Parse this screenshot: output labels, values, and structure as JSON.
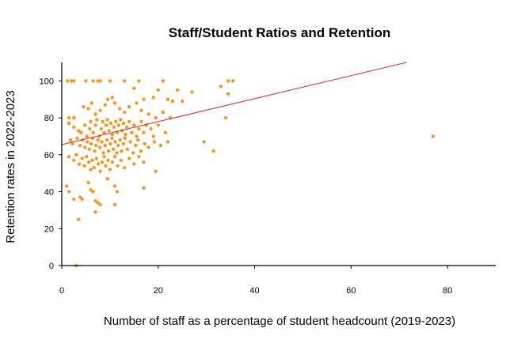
{
  "chart_data": {
    "type": "scatter",
    "title": "Staff/Student Ratios and Retention",
    "xlabel": "Number of staff as a percentage of student headcount (2019-2023)",
    "ylabel": "Retention rates in 2022-2023",
    "xlim": [
      0,
      90
    ],
    "ylim": [
      0,
      110
    ],
    "x_ticks": [
      0,
      20,
      40,
      60,
      80
    ],
    "y_ticks": [
      0,
      20,
      40,
      60,
      80,
      100
    ],
    "grid": false,
    "colors": {
      "points": "#f5961e",
      "trend": "#e8201c",
      "axis": "#000000"
    },
    "trend_line": {
      "x": [
        0,
        71.5
      ],
      "y": [
        65.5,
        110
      ]
    },
    "points": [
      [
        1.2,
        100
      ],
      [
        2.0,
        100
      ],
      [
        2.5,
        100
      ],
      [
        5.0,
        100
      ],
      [
        6.5,
        100
      ],
      [
        7.5,
        100
      ],
      [
        8.0,
        100
      ],
      [
        10.0,
        100
      ],
      [
        13.0,
        100
      ],
      [
        16.0,
        100
      ],
      [
        21.0,
        100
      ],
      [
        34.5,
        100
      ],
      [
        35.5,
        100
      ],
      [
        15.0,
        96
      ],
      [
        20.0,
        95
      ],
      [
        24.0,
        95
      ],
      [
        27.0,
        94
      ],
      [
        33.0,
        97
      ],
      [
        34.5,
        93
      ],
      [
        19.0,
        91
      ],
      [
        22.0,
        90
      ],
      [
        23.0,
        89
      ],
      [
        25.0,
        89
      ],
      [
        1.5,
        80
      ],
      [
        2.5,
        80
      ],
      [
        4.5,
        86
      ],
      [
        5.5,
        85
      ],
      [
        6.2,
        88
      ],
      [
        7.0,
        82
      ],
      [
        8.0,
        84
      ],
      [
        9.0,
        87
      ],
      [
        9.5,
        90
      ],
      [
        10.5,
        91
      ],
      [
        11.0,
        88
      ],
      [
        12.0,
        85
      ],
      [
        13.0,
        83
      ],
      [
        14.0,
        86
      ],
      [
        15.5,
        88
      ],
      [
        16.5,
        84
      ],
      [
        17.0,
        90
      ],
      [
        18.0,
        82
      ],
      [
        19.5,
        80
      ],
      [
        21.0,
        83
      ],
      [
        22.5,
        80
      ],
      [
        34.0,
        80
      ],
      [
        1.5,
        77
      ],
      [
        2.5,
        75
      ],
      [
        3.5,
        73
      ],
      [
        4.0,
        72
      ],
      [
        4.8,
        76
      ],
      [
        5.2,
        70
      ],
      [
        5.8,
        74
      ],
      [
        6.0,
        78
      ],
      [
        6.5,
        72
      ],
      [
        7.0,
        76
      ],
      [
        7.3,
        79
      ],
      [
        7.8,
        70
      ],
      [
        8.2,
        74
      ],
      [
        8.5,
        78
      ],
      [
        8.8,
        72
      ],
      [
        9.2,
        76
      ],
      [
        9.5,
        79
      ],
      [
        9.8,
        73
      ],
      [
        10.2,
        77
      ],
      [
        10.5,
        71
      ],
      [
        10.8,
        75
      ],
      [
        11.2,
        78
      ],
      [
        11.5,
        72
      ],
      [
        11.8,
        76
      ],
      [
        12.2,
        79
      ],
      [
        12.5,
        73
      ],
      [
        12.8,
        77
      ],
      [
        13.2,
        71
      ],
      [
        13.5,
        75
      ],
      [
        14.0,
        78
      ],
      [
        14.5,
        72
      ],
      [
        15.0,
        76
      ],
      [
        15.5,
        70
      ],
      [
        16.0,
        74
      ],
      [
        16.5,
        78
      ],
      [
        17.0,
        72
      ],
      [
        17.5,
        76
      ],
      [
        18.5,
        74
      ],
      [
        19.0,
        70
      ],
      [
        20.0,
        76
      ],
      [
        21.5,
        72
      ],
      [
        1.8,
        68
      ],
      [
        2.2,
        66
      ],
      [
        3.2,
        69
      ],
      [
        3.8,
        65
      ],
      [
        4.3,
        68
      ],
      [
        4.8,
        64
      ],
      [
        5.3,
        67
      ],
      [
        5.7,
        63
      ],
      [
        6.1,
        66
      ],
      [
        6.4,
        69
      ],
      [
        6.8,
        62
      ],
      [
        7.1,
        65
      ],
      [
        7.5,
        68
      ],
      [
        7.9,
        64
      ],
      [
        8.3,
        67
      ],
      [
        8.6,
        61
      ],
      [
        9.0,
        65
      ],
      [
        9.4,
        68
      ],
      [
        9.7,
        62
      ],
      [
        10.1,
        66
      ],
      [
        10.4,
        69
      ],
      [
        10.7,
        63
      ],
      [
        11.1,
        67
      ],
      [
        11.4,
        61
      ],
      [
        11.7,
        65
      ],
      [
        12.1,
        68
      ],
      [
        12.4,
        62
      ],
      [
        12.8,
        66
      ],
      [
        13.1,
        69
      ],
      [
        13.6,
        63
      ],
      [
        14.2,
        67
      ],
      [
        14.8,
        61
      ],
      [
        15.3,
        65
      ],
      [
        15.8,
        68
      ],
      [
        16.4,
        62
      ],
      [
        17.2,
        66
      ],
      [
        18.0,
        64
      ],
      [
        19.2,
        67
      ],
      [
        20.5,
        65
      ],
      [
        22.0,
        67
      ],
      [
        1.5,
        59
      ],
      [
        2.5,
        57
      ],
      [
        3.0,
        60
      ],
      [
        3.6,
        55
      ],
      [
        4.2,
        58
      ],
      [
        4.7,
        54
      ],
      [
        5.1,
        59
      ],
      [
        5.6,
        56
      ],
      [
        6.0,
        52
      ],
      [
        6.3,
        57
      ],
      [
        6.7,
        53
      ],
      [
        7.2,
        58
      ],
      [
        7.6,
        55
      ],
      [
        8.0,
        51
      ],
      [
        8.4,
        56
      ],
      [
        8.8,
        59
      ],
      [
        9.1,
        54
      ],
      [
        9.6,
        57
      ],
      [
        10.0,
        52
      ],
      [
        10.5,
        56
      ],
      [
        11.0,
        59
      ],
      [
        11.6,
        54
      ],
      [
        12.3,
        57
      ],
      [
        13.0,
        53
      ],
      [
        14.0,
        58
      ],
      [
        15.0,
        55
      ],
      [
        16.0,
        59
      ],
      [
        17.0,
        56
      ],
      [
        19.5,
        51
      ],
      [
        1.0,
        43
      ],
      [
        1.5,
        40
      ],
      [
        2.5,
        36
      ],
      [
        3.8,
        37
      ],
      [
        4.2,
        36
      ],
      [
        5.5,
        45
      ],
      [
        6.0,
        41
      ],
      [
        6.5,
        40
      ],
      [
        7.0,
        35
      ],
      [
        7.5,
        34
      ],
      [
        8.0,
        33
      ],
      [
        9.5,
        47
      ],
      [
        11.0,
        43
      ],
      [
        11.5,
        40
      ],
      [
        17.0,
        42
      ],
      [
        3.5,
        25
      ],
      [
        7.0,
        29
      ],
      [
        11.0,
        33
      ],
      [
        3.0,
        0
      ],
      [
        29.5,
        67
      ],
      [
        31.5,
        62
      ],
      [
        77.0,
        70
      ]
    ]
  }
}
